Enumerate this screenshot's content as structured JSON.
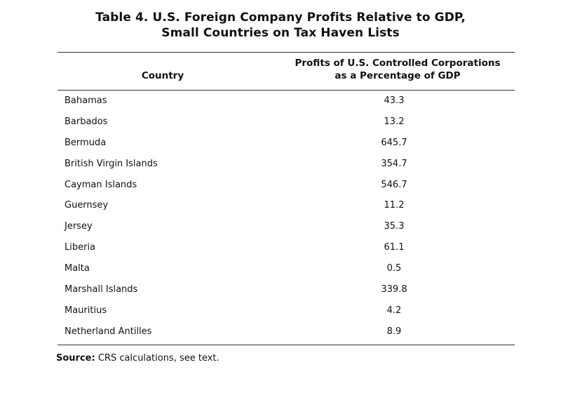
{
  "title": {
    "line1": "Table 4. U.S. Foreign Company Profits Relative to GDP,",
    "line2": "Small Countries on Tax Haven Lists"
  },
  "headers": {
    "country": "Country",
    "profits_line1": "Profits of U.S. Controlled Corporations",
    "profits_line2": "as a Percentage of GDP"
  },
  "rows": [
    {
      "country": "Bahamas",
      "value": "43.3"
    },
    {
      "country": "Barbados",
      "value": "13.2"
    },
    {
      "country": "Bermuda",
      "value": "645.7"
    },
    {
      "country": "British Virgin Islands",
      "value": "354.7"
    },
    {
      "country": "Cayman Islands",
      "value": "546.7"
    },
    {
      "country": "Guernsey",
      "value": "11.2"
    },
    {
      "country": "Jersey",
      "value": "35.3"
    },
    {
      "country": "Liberia",
      "value": "61.1"
    },
    {
      "country": "Malta",
      "value": "0.5"
    },
    {
      "country": "Marshall Islands",
      "value": "339.8"
    },
    {
      "country": "Mauritius",
      "value": "4.2"
    },
    {
      "country": "Netherland Antilles",
      "value": "8.9"
    }
  ],
  "source": {
    "label": "Source:",
    "text": "CRS calculations, see text."
  }
}
